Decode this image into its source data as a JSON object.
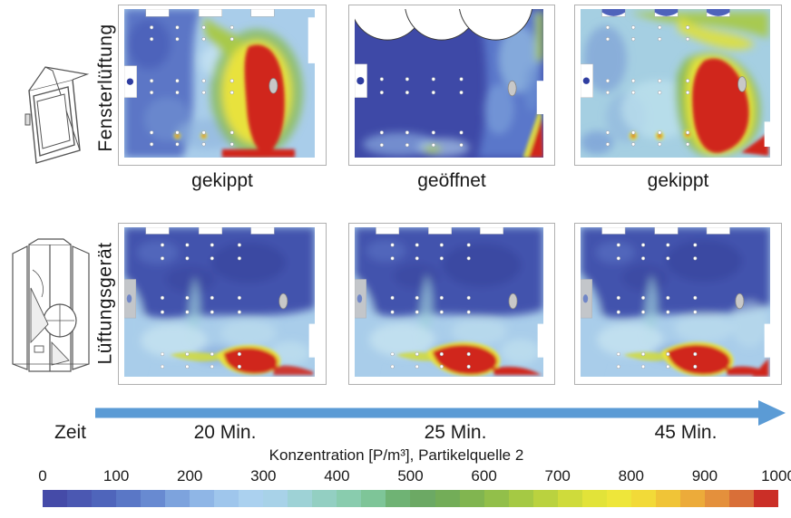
{
  "rows": [
    {
      "id": "fensterlueftung",
      "side_label": "Fensterlüftung",
      "icon": "tilted-window-icon",
      "panels": [
        {
          "caption": "gekippt"
        },
        {
          "caption": "geöffnet"
        },
        {
          "caption": "gekippt"
        }
      ]
    },
    {
      "id": "lueftungsgeraet",
      "side_label": "Lüftungsgerät",
      "icon": "ventilation-unit-icon",
      "panels": [
        {
          "caption": ""
        },
        {
          "caption": ""
        },
        {
          "caption": ""
        }
      ]
    }
  ],
  "timeline": {
    "label": "Zeit",
    "ticks": [
      "20 Min.",
      "25 Min.",
      "45 Min."
    ],
    "arrow_color": "#5b9bd5"
  },
  "colorbar": {
    "title": "Konzentration [P/m³], Partikelquelle 2",
    "ticks": [
      "0",
      "100",
      "200",
      "300",
      "400",
      "500",
      "600",
      "700",
      "800",
      "900",
      "1000"
    ],
    "colors": [
      "#454ba8",
      "#4b58b2",
      "#4f65bb",
      "#5a77c6",
      "#688ad1",
      "#7da3dd",
      "#8fb6e6",
      "#9fc6ec",
      "#abd1ef",
      "#a8d2e8",
      "#9ed2d6",
      "#93cfc2",
      "#89ccae",
      "#7ec598",
      "#6fb374",
      "#6ca964",
      "#73ad58",
      "#81b550",
      "#92bf4a",
      "#a5c944",
      "#bad23f",
      "#cfdb3b",
      "#e2e339",
      "#eee63a",
      "#f2da38",
      "#f0c437",
      "#ecab3a",
      "#e4903c",
      "#d96f38",
      "#cb2f27"
    ]
  },
  "chart_data": {
    "type": "heatmap",
    "title": "Konzentration [P/m³], Partikelquelle 2",
    "colorbar": {
      "min": 0,
      "max": 1000,
      "ticks": [
        0,
        100,
        200,
        300,
        400,
        500,
        600,
        700,
        800,
        900,
        1000
      ],
      "unit": "P/m³"
    },
    "columns_time_min": [
      20,
      25,
      45
    ],
    "series": [
      {
        "name": "Fensterlüftung",
        "states": [
          "gekippt",
          "geöffnet",
          "gekippt"
        ],
        "summary": [
          "high red plume ~1000 P/m³ on right side, blue ~100-300 left",
          "mostly dark blue ~0-100 with open-window fans, small red corner bottom right",
          "large red plume ~1000 P/m³ right half, cyan ~200-400 left"
        ]
      },
      {
        "name": "Lüftungsgerät",
        "states": [
          "",
          "",
          ""
        ],
        "summary": [
          "dark blue ~100 upper half, light blue ~200 lower, small red blob ~1000 at floor center-right",
          "same pattern, red floor blob with tail to right corner",
          "same pattern, red floor blob slightly larger"
        ]
      }
    ]
  }
}
